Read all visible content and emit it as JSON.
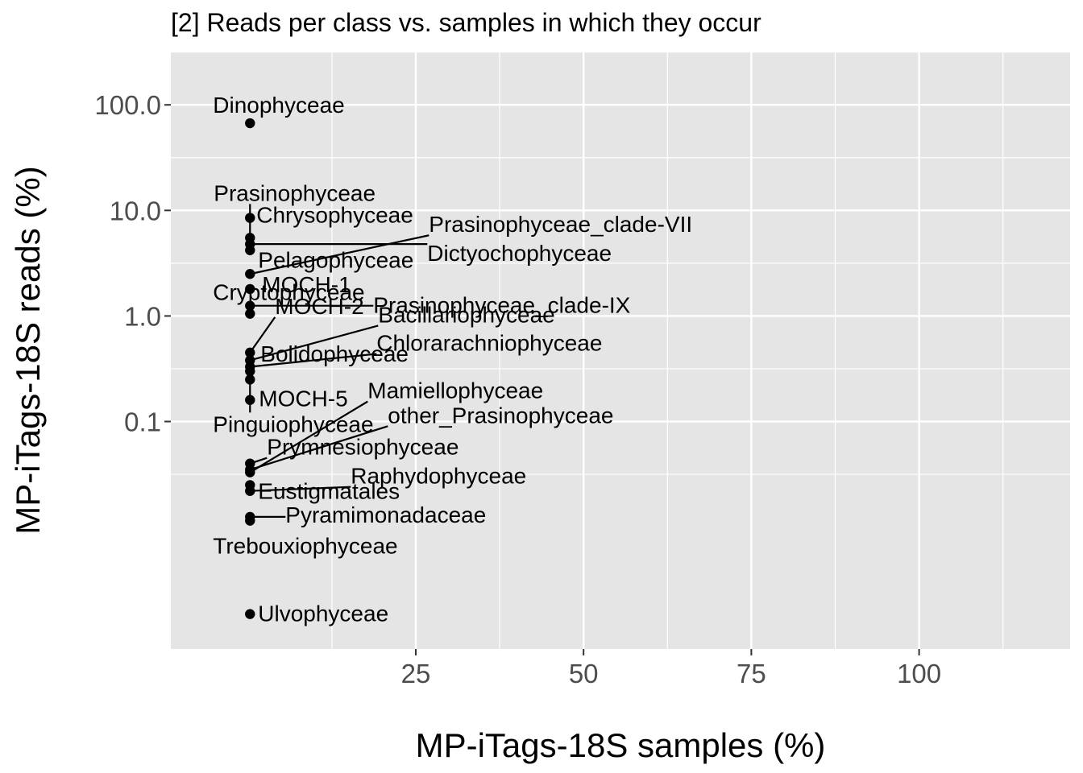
{
  "chart_data": {
    "type": "scatter",
    "title": "[2] Reads per class vs. samples in which they occur",
    "xlabel": "MP-iTags-18S samples (%)",
    "ylabel": "MP-iTags-18S reads (%)",
    "x_scale": "linear",
    "y_scale": "log10",
    "xlim": [
      -11.5,
      122.5
    ],
    "ylim": [
      0.0007,
      320
    ],
    "x_ticks": [
      25,
      50,
      75,
      100
    ],
    "x_tick_labels": [
      "25",
      "50",
      "75",
      "100"
    ],
    "y_ticks": [
      0.1,
      1,
      10,
      100
    ],
    "y_tick_labels": [
      "0.1",
      "1.0",
      "10.0",
      "100.0"
    ],
    "grid": true,
    "legend": "none",
    "colors": {
      "panel": "#e5e5e5",
      "grid": "#ffffff",
      "point": "#000000",
      "text": "#000000",
      "tick": "#4d4d4d"
    },
    "points": [
      {
        "label": "Dinophyceae",
        "x": 0.3,
        "y": 67
      },
      {
        "label": "Prasinophyceae",
        "x": 0.3,
        "y": 5.5
      },
      {
        "label": "Chrysophyceae",
        "x": 0.3,
        "y": 8.5
      },
      {
        "label": "Prasinophyceae_clade-VII",
        "x": 0.3,
        "y": 2.5
      },
      {
        "label": "Pelagophyceae",
        "x": 0.3,
        "y": 4.2
      },
      {
        "label": "Dictyochophyceae",
        "x": 0.3,
        "y": 4.8
      },
      {
        "label": "MOCH-1",
        "x": 0.3,
        "y": 1.8
      },
      {
        "label": "Prasinophyceae_clade-IX",
        "x": 0.3,
        "y": 1.25
      },
      {
        "label": "MOCH-2",
        "x": 0.3,
        "y": 0.45
      },
      {
        "label": "Bacillariophyceae",
        "x": 0.3,
        "y": 0.38
      },
      {
        "label": "Cryptophyceae",
        "x": 0.3,
        "y": 1.05
      },
      {
        "label": "Chlorarachniophyceae",
        "x": 0.3,
        "y": 0.33
      },
      {
        "label": "Bolidophyceae",
        "x": 0.3,
        "y": 0.3
      },
      {
        "label": "MOCH-5",
        "x": 0.3,
        "y": 0.16
      },
      {
        "label": "Pinguiophyceae",
        "x": 0.3,
        "y": 0.25
      },
      {
        "label": "Mamiellophyceae",
        "x": 0.3,
        "y": 0.033
      },
      {
        "label": "other_Prasinophyceae",
        "x": 0.3,
        "y": 0.035
      },
      {
        "label": "Prymnesiophyceae",
        "x": 0.3,
        "y": 0.04
      },
      {
        "label": "Raphydophyceae",
        "x": 0.3,
        "y": 0.022
      },
      {
        "label": "Eustigmatales",
        "x": 0.3,
        "y": 0.025
      },
      {
        "label": "Pyramimonadaceae",
        "x": 0.3,
        "y": 0.0125
      },
      {
        "label": "Trebouxiophyceae",
        "x": 0.3,
        "y": 0.0115
      },
      {
        "label": "Ulvophyceae",
        "x": 0.3,
        "y": 0.0015
      }
    ]
  }
}
